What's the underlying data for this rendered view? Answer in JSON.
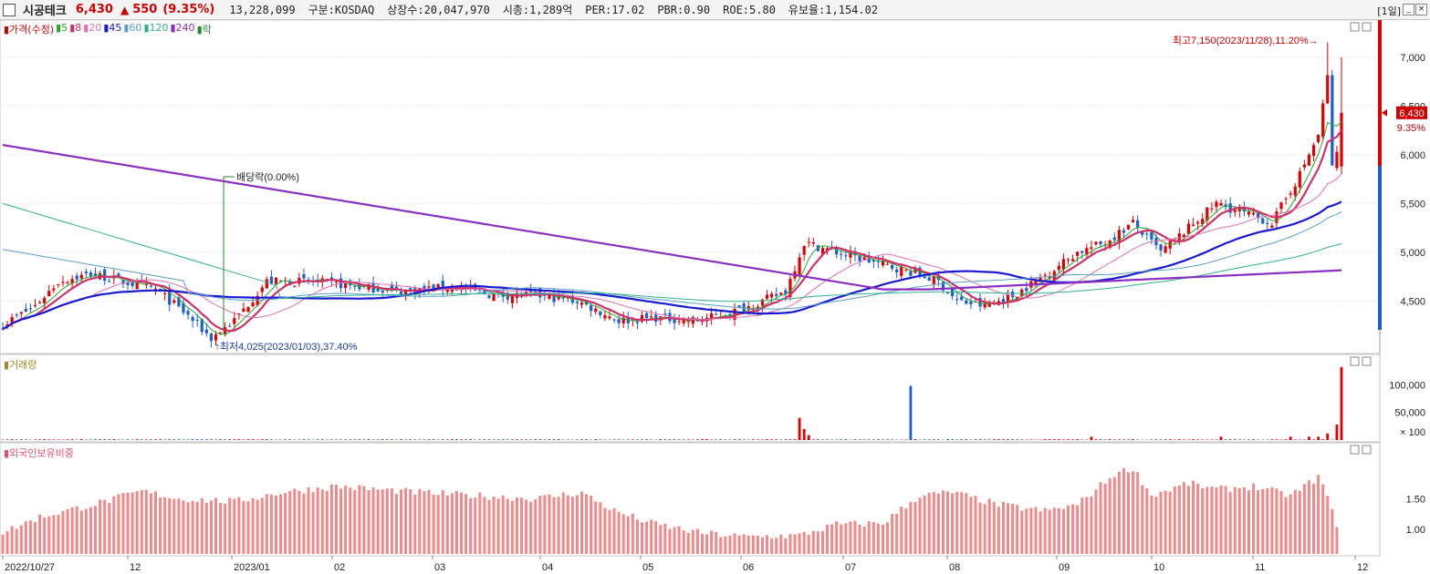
{
  "header": {
    "name": "시공테크",
    "price": "6,430",
    "change_arrow": "▲",
    "change": "550",
    "change_pct": "(9.35%)",
    "volume": "13,228,099",
    "info": [
      "구분:KOSDAQ",
      "상장수:20,047,970",
      "시총:1,289억",
      "PER:17.02",
      "PBR:0.90",
      "ROE:5.80",
      "유보율:1,154.02"
    ],
    "period": "[1일]",
    "window_buttons": [
      "_",
      "×"
    ]
  },
  "price_panel": {
    "legend": [
      {
        "label": "가격(수정)",
        "color": "#d00000"
      },
      {
        "label": "5",
        "color": "#2aa82a"
      },
      {
        "label": "8",
        "color": "#d0306a"
      },
      {
        "label": "20",
        "color": "#e070b0"
      },
      {
        "label": "45",
        "color": "#1a1ad0"
      },
      {
        "label": "60",
        "color": "#5aa0c8"
      },
      {
        "label": "120",
        "color": "#30b090"
      },
      {
        "label": "240",
        "color": "#8a2fc0"
      },
      {
        "label": "락",
        "color": "#2a8a2a"
      }
    ],
    "annotations": {
      "high": "최고7,150(2023/11/28),11.20%",
      "low": "최저4,025(2023/01/03),37.40%",
      "dividend": "배당락(0.00%)"
    },
    "last_price_tag": "6,430",
    "last_pct_tag": "9.35%"
  },
  "volume_panel": {
    "title": "거래량",
    "unit_label": "× 100"
  },
  "foreign_panel": {
    "title": "외국인보유비중"
  },
  "chart_data": [
    {
      "type": "candlestick",
      "title": "가격(수정)",
      "y_ticks": [
        4500,
        5000,
        5500,
        6000,
        6500,
        7000
      ],
      "ylim": [
        4000,
        7250
      ],
      "x_tick_labels": [
        "2022/10/27",
        "12",
        "2023/01",
        "02",
        "03",
        "04",
        "05",
        "06",
        "07",
        "08",
        "09",
        "10",
        "11",
        "12"
      ],
      "ohlc_anchors": {
        "start": {
          "date": "2022/10/27",
          "close": 4260
        },
        "low": {
          "date": "2023/01/03",
          "low": 4025
        },
        "high": {
          "date": "2023/11/28",
          "high": 7150
        },
        "last": {
          "close": 6430,
          "change": 550,
          "change_pct": 9.35
        }
      },
      "moving_average_series": [
        {
          "name": "5",
          "color": "#2aa82a"
        },
        {
          "name": "8",
          "color": "#d0306a"
        },
        {
          "name": "20",
          "color": "#e070b0"
        },
        {
          "name": "45",
          "color": "#1a1ad0"
        },
        {
          "name": "60",
          "color": "#5aa0c8"
        },
        {
          "name": "120",
          "color": "#30b090"
        },
        {
          "name": "240",
          "color": "#8a2fc0"
        }
      ]
    },
    {
      "type": "bar",
      "title": "거래량",
      "y_ticks": [
        50000,
        100000
      ],
      "y_tick_labels": [
        "50,000",
        "100,000"
      ],
      "unit": "× 100",
      "ylim": [
        0,
        140000
      ]
    },
    {
      "type": "bar",
      "title": "외국인보유비중",
      "y_ticks": [
        1.0,
        1.5
      ],
      "y_tick_labels": [
        "1.00",
        "1.50"
      ],
      "ylim": [
        0.6,
        2.2
      ]
    }
  ]
}
